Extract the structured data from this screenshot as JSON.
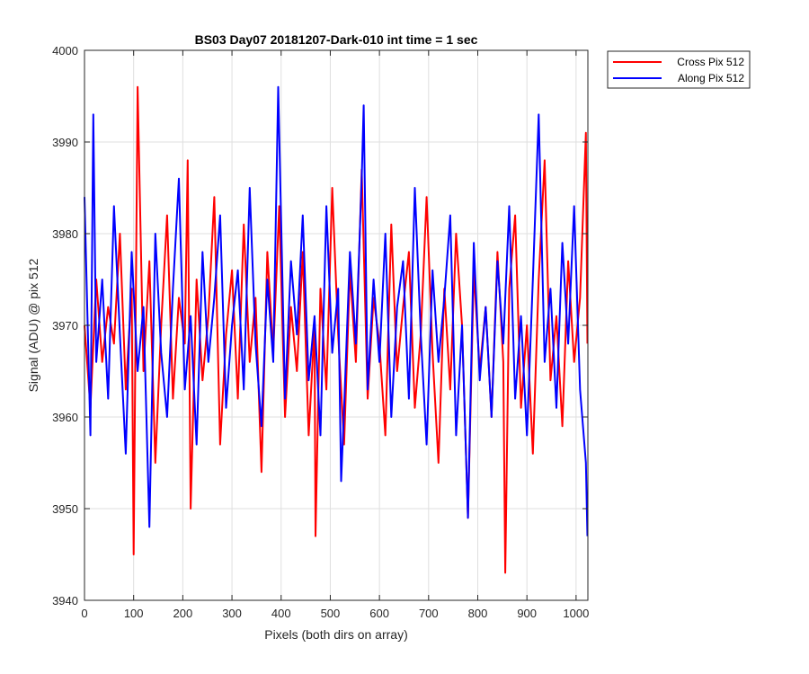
{
  "chart_data": {
    "type": "line",
    "title": "BS03 Day07 20181207-Dark-010 int time = 1 sec",
    "xlabel": "Pixels (both dirs on array)",
    "ylabel": "Signal (ADU) @ pix 512",
    "xlim": [
      0,
      1024
    ],
    "ylim": [
      3940,
      4000
    ],
    "xticks": [
      0,
      100,
      200,
      300,
      400,
      500,
      600,
      700,
      800,
      900,
      1000
    ],
    "yticks": [
      3940,
      3950,
      3960,
      3970,
      3980,
      3990,
      4000
    ],
    "grid": true,
    "legend_position": "outside top-right",
    "series": [
      {
        "name": "Cross Pix 512",
        "color": "#ff0000",
        "x": [
          0,
          12,
          24,
          36,
          48,
          60,
          72,
          84,
          96,
          100,
          108,
          120,
          132,
          144,
          156,
          168,
          180,
          192,
          204,
          210,
          216,
          228,
          240,
          252,
          264,
          276,
          288,
          300,
          312,
          324,
          336,
          348,
          360,
          372,
          384,
          396,
          408,
          420,
          432,
          444,
          456,
          468,
          470,
          480,
          492,
          504,
          516,
          528,
          540,
          552,
          564,
          576,
          588,
          600,
          612,
          624,
          636,
          648,
          660,
          672,
          684,
          696,
          708,
          720,
          732,
          744,
          756,
          768,
          780,
          792,
          804,
          816,
          828,
          840,
          852,
          856,
          864,
          876,
          888,
          900,
          912,
          924,
          936,
          948,
          960,
          972,
          984,
          996,
          1008,
          1020,
          1023
        ],
        "y": [
          3970,
          3961,
          3975,
          3966,
          3972,
          3968,
          3980,
          3963,
          3974,
          3945,
          3996,
          3965,
          3977,
          3955,
          3970,
          3982,
          3962,
          3973,
          3968,
          3988,
          3950,
          3975,
          3964,
          3971,
          3984,
          3957,
          3969,
          3976,
          3962,
          3981,
          3966,
          3973,
          3954,
          3978,
          3967,
          3983,
          3960,
          3972,
          3965,
          3978,
          3958,
          3970,
          3947,
          3974,
          3963,
          3985,
          3969,
          3957,
          3976,
          3966,
          3987,
          3962,
          3973,
          3968,
          3958,
          3981,
          3965,
          3972,
          3978,
          3961,
          3969,
          3984,
          3967,
          3955,
          3974,
          3963,
          3980,
          3970,
          3949,
          3976,
          3965,
          3972,
          3960,
          3978,
          3966,
          3943,
          3974,
          3982,
          3961,
          3970,
          3956,
          3975,
          3988,
          3964,
          3971,
          3959,
          3977,
          3966,
          3973,
          3991,
          3968
        ]
      },
      {
        "name": "Along Pix 512",
        "color": "#0000ff",
        "x": [
          0,
          12,
          18,
          24,
          36,
          48,
          60,
          72,
          84,
          96,
          108,
          120,
          132,
          144,
          156,
          168,
          180,
          192,
          204,
          216,
          228,
          240,
          252,
          264,
          276,
          288,
          300,
          312,
          324,
          336,
          348,
          360,
          372,
          384,
          394,
          408,
          420,
          432,
          444,
          456,
          468,
          480,
          492,
          504,
          516,
          522,
          528,
          540,
          552,
          564,
          568,
          576,
          588,
          600,
          612,
          624,
          636,
          648,
          660,
          672,
          684,
          696,
          708,
          720,
          732,
          744,
          756,
          768,
          780,
          792,
          804,
          816,
          828,
          840,
          852,
          864,
          876,
          888,
          900,
          912,
          924,
          936,
          948,
          960,
          972,
          984,
          996,
          1008,
          1020,
          1023
        ],
        "y": [
          3984,
          3958,
          3993,
          3966,
          3975,
          3962,
          3983,
          3969,
          3956,
          3978,
          3965,
          3972,
          3948,
          3980,
          3967,
          3960,
          3974,
          3986,
          3963,
          3971,
          3957,
          3978,
          3966,
          3973,
          3982,
          3961,
          3970,
          3976,
          3963,
          3985,
          3968,
          3959,
          3975,
          3966,
          3996,
          3962,
          3977,
          3969,
          3982,
          3964,
          3971,
          3958,
          3983,
          3967,
          3974,
          3953,
          3961,
          3978,
          3968,
          3986,
          3994,
          3963,
          3975,
          3966,
          3980,
          3960,
          3972,
          3977,
          3962,
          3985,
          3969,
          3957,
          3976,
          3966,
          3973,
          3982,
          3958,
          3970,
          3949,
          3979,
          3964,
          3972,
          3960,
          3977,
          3968,
          3983,
          3962,
          3971,
          3958,
          3975,
          3993,
          3966,
          3974,
          3961,
          3979,
          3968,
          3983,
          3963,
          3955,
          3947
        ]
      }
    ]
  }
}
